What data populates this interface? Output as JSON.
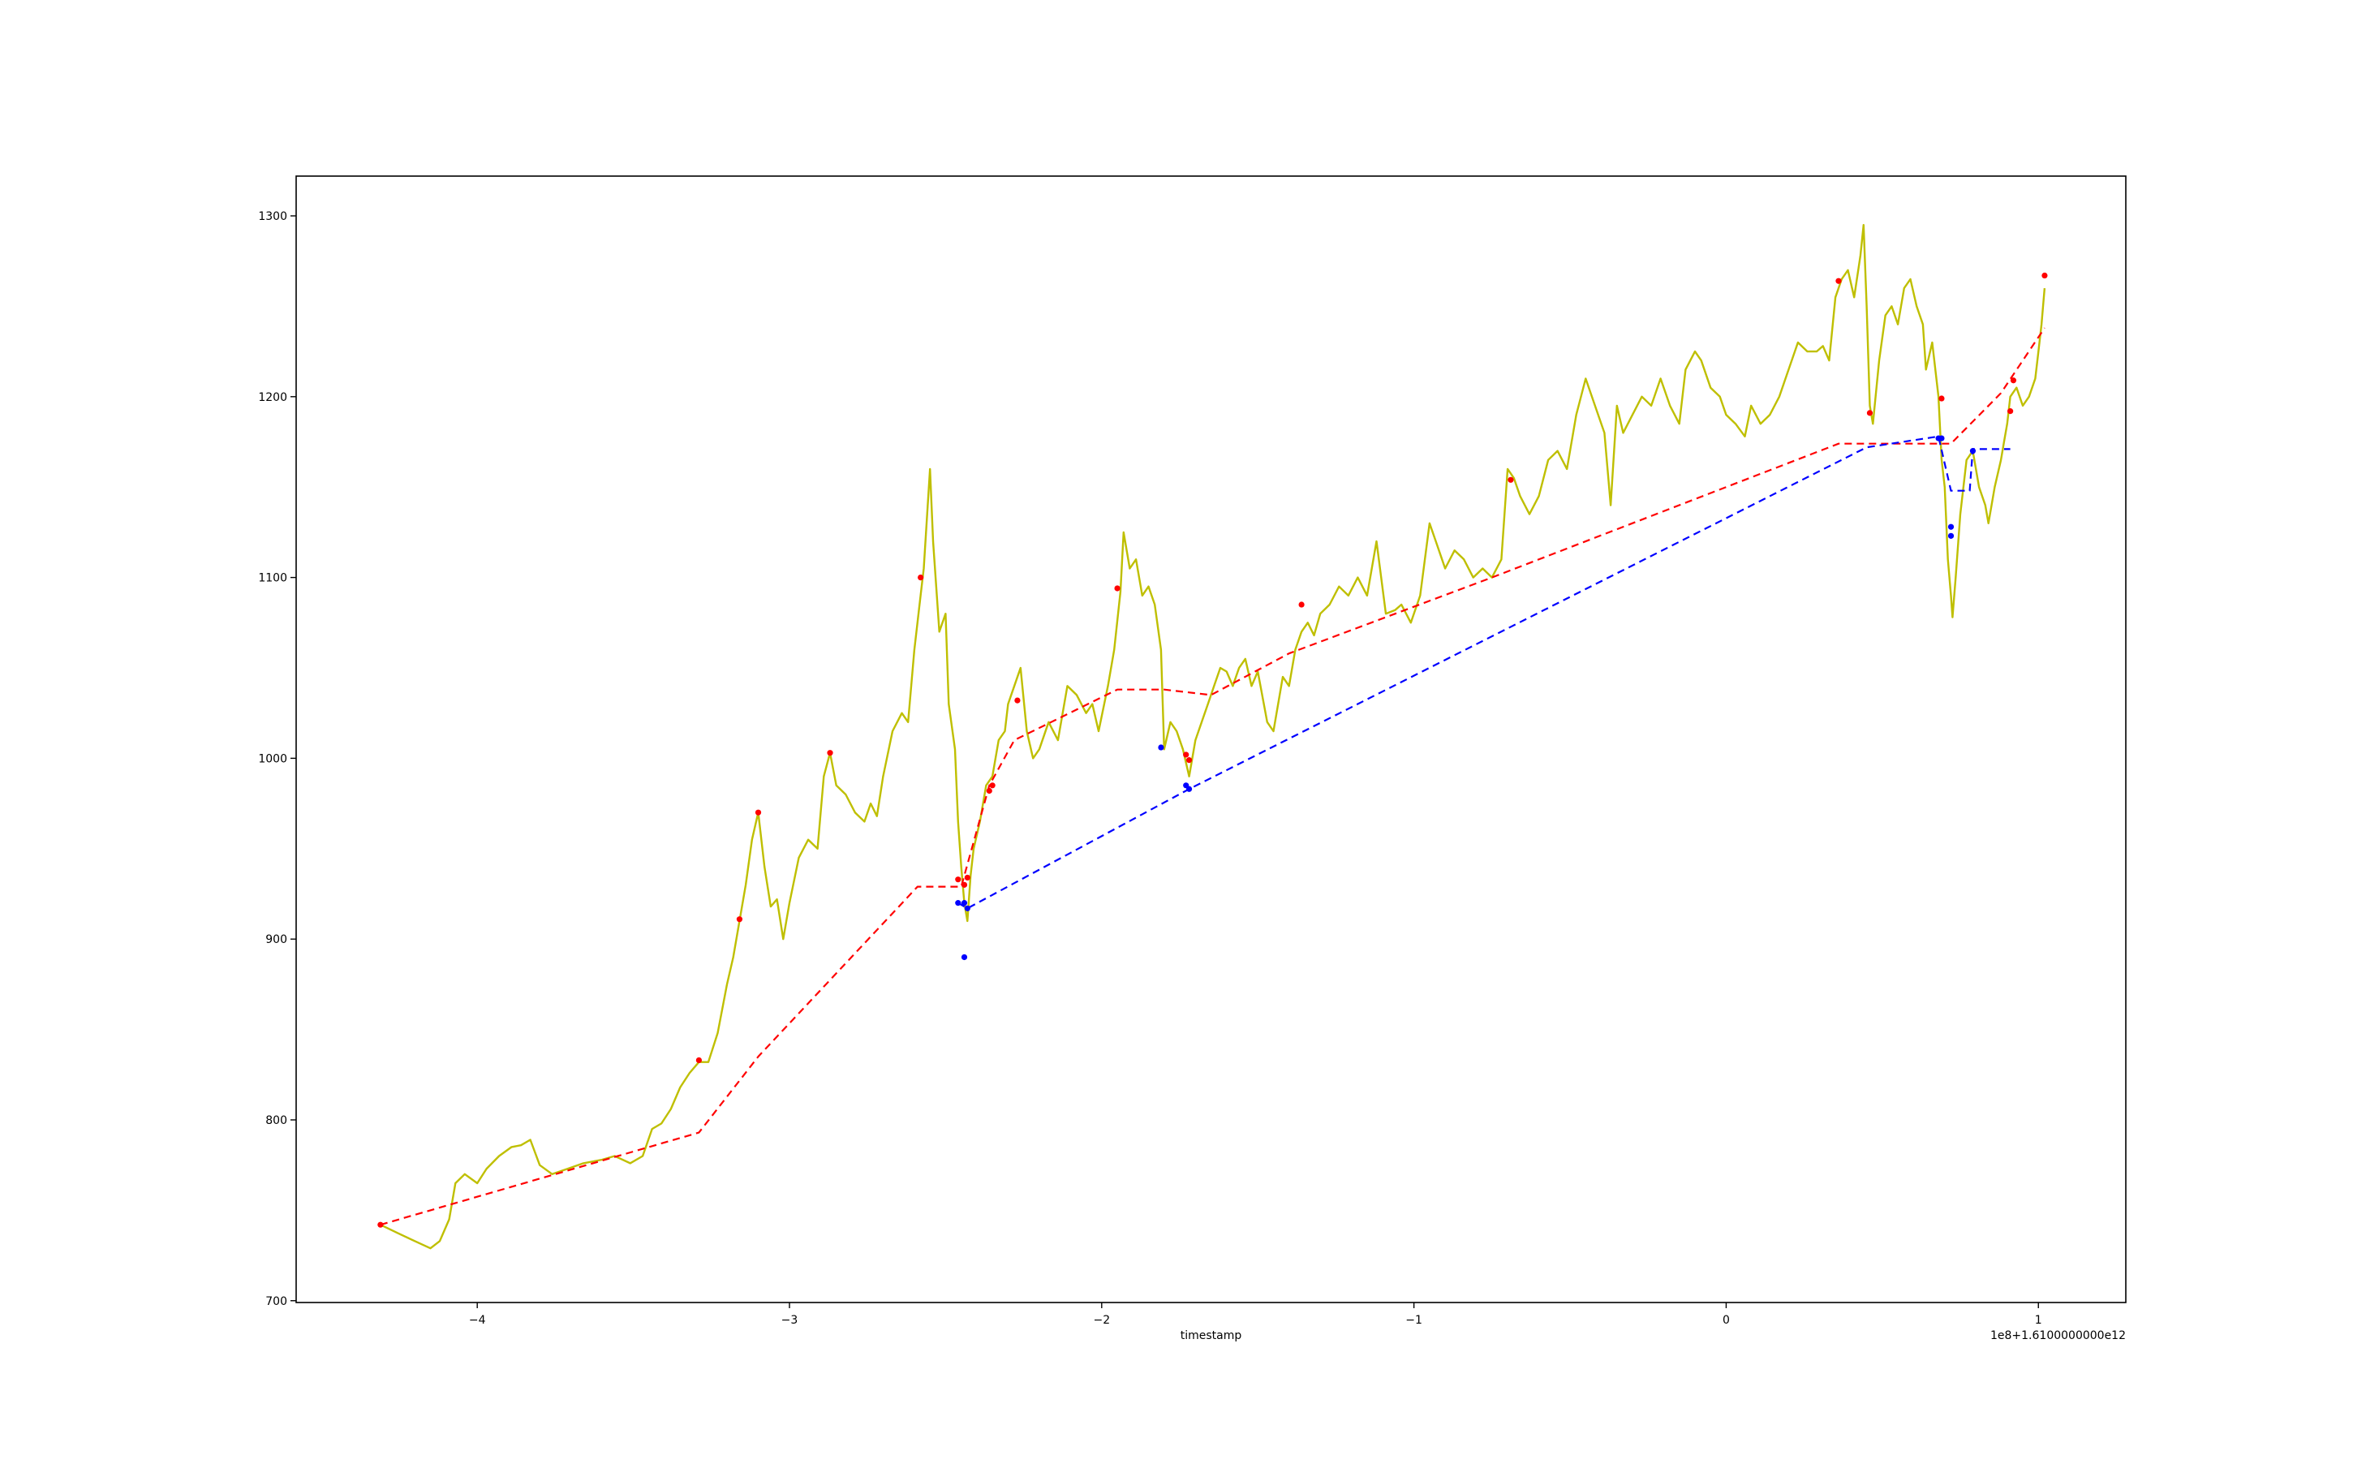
{
  "chart_data": {
    "type": "line",
    "title": "",
    "xlabel": "timestamp",
    "ylabel": "",
    "x_offset_text": "1e8+1.6100000000e12",
    "xlim": [
      -4.58,
      1.28
    ],
    "ylim": [
      699,
      1322
    ],
    "x_ticks": [
      {
        "value": -4,
        "label": "−4"
      },
      {
        "value": -3,
        "label": "−3"
      },
      {
        "value": -2,
        "label": "−2"
      },
      {
        "value": -1,
        "label": "−1"
      },
      {
        "value": 0,
        "label": "0"
      },
      {
        "value": 1,
        "label": "1"
      }
    ],
    "y_ticks": [
      {
        "value": 700,
        "label": "700"
      },
      {
        "value": 800,
        "label": "800"
      },
      {
        "value": 900,
        "label": "900"
      },
      {
        "value": 1000,
        "label": "1000"
      },
      {
        "value": 1100,
        "label": "1100"
      },
      {
        "value": 1200,
        "label": "1200"
      },
      {
        "value": 1300,
        "label": "1300"
      }
    ],
    "grid": false,
    "legend": "none",
    "colors": {
      "price": "#bfbf00",
      "red": "#ff0000",
      "blue": "#0000ff"
    },
    "series": [
      {
        "kind": "price",
        "style": "solid",
        "color": "#bfbf00",
        "points": [
          [
            -4.31,
            742
          ],
          [
            -4.25,
            737
          ],
          [
            -4.2,
            733
          ],
          [
            -4.15,
            729
          ],
          [
            -4.12,
            733
          ],
          [
            -4.09,
            745
          ],
          [
            -4.07,
            765
          ],
          [
            -4.04,
            770
          ],
          [
            -4.0,
            765
          ],
          [
            -3.97,
            773
          ],
          [
            -3.93,
            780
          ],
          [
            -3.89,
            785
          ],
          [
            -3.86,
            786
          ],
          [
            -3.83,
            789
          ],
          [
            -3.8,
            775
          ],
          [
            -3.76,
            770
          ],
          [
            -3.71,
            773
          ],
          [
            -3.66,
            776
          ],
          [
            -3.6,
            778
          ],
          [
            -3.56,
            780
          ],
          [
            -3.51,
            776
          ],
          [
            -3.47,
            780
          ],
          [
            -3.44,
            795
          ],
          [
            -3.41,
            798
          ],
          [
            -3.38,
            806
          ],
          [
            -3.35,
            818
          ],
          [
            -3.32,
            826
          ],
          [
            -3.29,
            832
          ],
          [
            -3.26,
            832
          ],
          [
            -3.23,
            848
          ],
          [
            -3.2,
            875
          ],
          [
            -3.18,
            890
          ],
          [
            -3.16,
            910
          ],
          [
            -3.14,
            930
          ],
          [
            -3.12,
            955
          ],
          [
            -3.1,
            970
          ],
          [
            -3.08,
            940
          ],
          [
            -3.06,
            918
          ],
          [
            -3.04,
            922
          ],
          [
            -3.02,
            900
          ],
          [
            -3.0,
            920
          ],
          [
            -2.97,
            945
          ],
          [
            -2.94,
            955
          ],
          [
            -2.91,
            950
          ],
          [
            -2.89,
            990
          ],
          [
            -2.87,
            1003
          ],
          [
            -2.85,
            985
          ],
          [
            -2.82,
            980
          ],
          [
            -2.79,
            970
          ],
          [
            -2.76,
            965
          ],
          [
            -2.74,
            975
          ],
          [
            -2.72,
            968
          ],
          [
            -2.7,
            990
          ],
          [
            -2.67,
            1015
          ],
          [
            -2.64,
            1025
          ],
          [
            -2.62,
            1020
          ],
          [
            -2.6,
            1060
          ],
          [
            -2.58,
            1090
          ],
          [
            -2.57,
            1105
          ],
          [
            -2.55,
            1160
          ],
          [
            -2.54,
            1120
          ],
          [
            -2.52,
            1070
          ],
          [
            -2.5,
            1080
          ],
          [
            -2.49,
            1030
          ],
          [
            -2.47,
            1005
          ],
          [
            -2.46,
            965
          ],
          [
            -2.45,
            940
          ],
          [
            -2.44,
            920
          ],
          [
            -2.43,
            910
          ],
          [
            -2.42,
            935
          ],
          [
            -2.41,
            950
          ],
          [
            -2.39,
            965
          ],
          [
            -2.37,
            985
          ],
          [
            -2.35,
            990
          ],
          [
            -2.33,
            1010
          ],
          [
            -2.31,
            1015
          ],
          [
            -2.3,
            1030
          ],
          [
            -2.28,
            1040
          ],
          [
            -2.26,
            1050
          ],
          [
            -2.24,
            1015
          ],
          [
            -2.22,
            1000
          ],
          [
            -2.2,
            1005
          ],
          [
            -2.17,
            1020
          ],
          [
            -2.14,
            1010
          ],
          [
            -2.11,
            1040
          ],
          [
            -2.08,
            1035
          ],
          [
            -2.05,
            1025
          ],
          [
            -2.03,
            1030
          ],
          [
            -2.01,
            1015
          ],
          [
            -1.98,
            1040
          ],
          [
            -1.96,
            1060
          ],
          [
            -1.94,
            1092
          ],
          [
            -1.93,
            1125
          ],
          [
            -1.91,
            1105
          ],
          [
            -1.89,
            1110
          ],
          [
            -1.87,
            1090
          ],
          [
            -1.85,
            1095
          ],
          [
            -1.83,
            1085
          ],
          [
            -1.81,
            1060
          ],
          [
            -1.8,
            1005
          ],
          [
            -1.78,
            1020
          ],
          [
            -1.76,
            1015
          ],
          [
            -1.74,
            1005
          ],
          [
            -1.72,
            990
          ],
          [
            -1.7,
            1010
          ],
          [
            -1.68,
            1020
          ],
          [
            -1.66,
            1030
          ],
          [
            -1.64,
            1040
          ],
          [
            -1.62,
            1050
          ],
          [
            -1.6,
            1048
          ],
          [
            -1.58,
            1040
          ],
          [
            -1.56,
            1050
          ],
          [
            -1.54,
            1055
          ],
          [
            -1.52,
            1040
          ],
          [
            -1.5,
            1048
          ],
          [
            -1.47,
            1020
          ],
          [
            -1.45,
            1015
          ],
          [
            -1.42,
            1045
          ],
          [
            -1.4,
            1040
          ],
          [
            -1.38,
            1060
          ],
          [
            -1.36,
            1070
          ],
          [
            -1.34,
            1075
          ],
          [
            -1.32,
            1068
          ],
          [
            -1.3,
            1080
          ],
          [
            -1.27,
            1085
          ],
          [
            -1.24,
            1095
          ],
          [
            -1.21,
            1090
          ],
          [
            -1.18,
            1100
          ],
          [
            -1.15,
            1090
          ],
          [
            -1.12,
            1120
          ],
          [
            -1.09,
            1080
          ],
          [
            -1.06,
            1082
          ],
          [
            -1.04,
            1085
          ],
          [
            -1.01,
            1075
          ],
          [
            -0.98,
            1090
          ],
          [
            -0.95,
            1130
          ],
          [
            -0.93,
            1120
          ],
          [
            -0.9,
            1105
          ],
          [
            -0.87,
            1115
          ],
          [
            -0.84,
            1110
          ],
          [
            -0.81,
            1100
          ],
          [
            -0.78,
            1105
          ],
          [
            -0.75,
            1100
          ],
          [
            -0.72,
            1110
          ],
          [
            -0.7,
            1160
          ],
          [
            -0.68,
            1155
          ],
          [
            -0.66,
            1145
          ],
          [
            -0.63,
            1135
          ],
          [
            -0.6,
            1145
          ],
          [
            -0.57,
            1165
          ],
          [
            -0.54,
            1170
          ],
          [
            -0.51,
            1160
          ],
          [
            -0.48,
            1190
          ],
          [
            -0.45,
            1210
          ],
          [
            -0.42,
            1195
          ],
          [
            -0.39,
            1180
          ],
          [
            -0.37,
            1140
          ],
          [
            -0.35,
            1195
          ],
          [
            -0.33,
            1180
          ],
          [
            -0.3,
            1190
          ],
          [
            -0.27,
            1200
          ],
          [
            -0.24,
            1195
          ],
          [
            -0.21,
            1210
          ],
          [
            -0.18,
            1195
          ],
          [
            -0.15,
            1185
          ],
          [
            -0.13,
            1215
          ],
          [
            -0.1,
            1225
          ],
          [
            -0.08,
            1220
          ],
          [
            -0.05,
            1205
          ],
          [
            -0.02,
            1200
          ],
          [
            0.0,
            1190
          ],
          [
            0.03,
            1185
          ],
          [
            0.06,
            1178
          ],
          [
            0.08,
            1195
          ],
          [
            0.11,
            1185
          ],
          [
            0.14,
            1190
          ],
          [
            0.17,
            1200
          ],
          [
            0.2,
            1215
          ],
          [
            0.23,
            1230
          ],
          [
            0.26,
            1225
          ],
          [
            0.29,
            1225
          ],
          [
            0.31,
            1228
          ],
          [
            0.33,
            1220
          ],
          [
            0.35,
            1255
          ],
          [
            0.37,
            1265
          ],
          [
            0.39,
            1270
          ],
          [
            0.41,
            1255
          ],
          [
            0.43,
            1278
          ],
          [
            0.44,
            1295
          ],
          [
            0.45,
            1250
          ],
          [
            0.46,
            1195
          ],
          [
            0.47,
            1185
          ],
          [
            0.49,
            1220
          ],
          [
            0.51,
            1245
          ],
          [
            0.53,
            1250
          ],
          [
            0.55,
            1240
          ],
          [
            0.57,
            1260
          ],
          [
            0.59,
            1265
          ],
          [
            0.61,
            1250
          ],
          [
            0.63,
            1240
          ],
          [
            0.64,
            1215
          ],
          [
            0.66,
            1230
          ],
          [
            0.68,
            1200
          ],
          [
            0.69,
            1165
          ],
          [
            0.7,
            1150
          ],
          [
            0.71,
            1110
          ],
          [
            0.72,
            1090
          ],
          [
            0.725,
            1078
          ],
          [
            0.735,
            1100
          ],
          [
            0.75,
            1135
          ],
          [
            0.77,
            1165
          ],
          [
            0.79,
            1170
          ],
          [
            0.81,
            1150
          ],
          [
            0.83,
            1140
          ],
          [
            0.84,
            1130
          ],
          [
            0.86,
            1150
          ],
          [
            0.88,
            1165
          ],
          [
            0.89,
            1175
          ],
          [
            0.9,
            1185
          ],
          [
            0.91,
            1200
          ],
          [
            0.93,
            1205
          ],
          [
            0.95,
            1195
          ],
          [
            0.97,
            1200
          ],
          [
            0.99,
            1210
          ],
          [
            1.0,
            1225
          ],
          [
            1.01,
            1240
          ],
          [
            1.02,
            1260
          ]
        ]
      },
      {
        "kind": "red-dashed",
        "style": "dashed",
        "color": "#ff0000",
        "points": [
          [
            -4.31,
            742
          ],
          [
            -3.29,
            793
          ],
          [
            -3.1,
            835
          ],
          [
            -2.59,
            929
          ],
          [
            -2.45,
            929
          ],
          [
            -2.36,
            985
          ],
          [
            -2.28,
            1010
          ],
          [
            -1.95,
            1038
          ],
          [
            -1.8,
            1038
          ],
          [
            -1.65,
            1035
          ],
          [
            -1.4,
            1058
          ],
          [
            -0.75,
            1100
          ],
          [
            0.36,
            1174
          ],
          [
            0.72,
            1174
          ],
          [
            0.88,
            1202
          ],
          [
            1.02,
            1238
          ]
        ]
      },
      {
        "kind": "blue-dashed",
        "style": "dashed",
        "color": "#0000ff",
        "points": [
          [
            -2.46,
            920
          ],
          [
            -2.43,
            917
          ],
          [
            -1.72,
            983
          ],
          [
            0.45,
            1172
          ],
          [
            0.68,
            1178
          ],
          [
            0.72,
            1148
          ],
          [
            0.78,
            1148
          ],
          [
            0.79,
            1171
          ],
          [
            0.91,
            1171
          ]
        ]
      },
      {
        "kind": "red-markers",
        "style": "marker",
        "color": "#ff0000",
        "points": [
          [
            -4.31,
            742
          ],
          [
            -3.29,
            833
          ],
          [
            -3.16,
            911
          ],
          [
            -3.1,
            970
          ],
          [
            -2.87,
            1003
          ],
          [
            -2.58,
            1100
          ],
          [
            -2.46,
            933
          ],
          [
            -2.44,
            930
          ],
          [
            -2.43,
            934
          ],
          [
            -2.36,
            982
          ],
          [
            -2.35,
            985
          ],
          [
            -2.27,
            1032
          ],
          [
            -1.95,
            1094
          ],
          [
            -1.73,
            1002
          ],
          [
            -1.72,
            999
          ],
          [
            -1.36,
            1085
          ],
          [
            -0.69,
            1154
          ],
          [
            0.36,
            1264
          ],
          [
            0.46,
            1191
          ],
          [
            0.69,
            1199
          ],
          [
            0.91,
            1192
          ],
          [
            0.92,
            1209
          ],
          [
            1.02,
            1267
          ]
        ]
      },
      {
        "kind": "blue-markers",
        "style": "marker",
        "color": "#0000ff",
        "points": [
          [
            -2.46,
            920
          ],
          [
            -2.44,
            920
          ],
          [
            -2.43,
            917
          ],
          [
            -2.44,
            890
          ],
          [
            -1.81,
            1006
          ],
          [
            -1.73,
            985
          ],
          [
            -1.72,
            983
          ],
          [
            0.68,
            1177
          ],
          [
            0.69,
            1177
          ],
          [
            0.72,
            1123
          ],
          [
            0.72,
            1128
          ],
          [
            0.79,
            1170
          ]
        ]
      }
    ]
  }
}
